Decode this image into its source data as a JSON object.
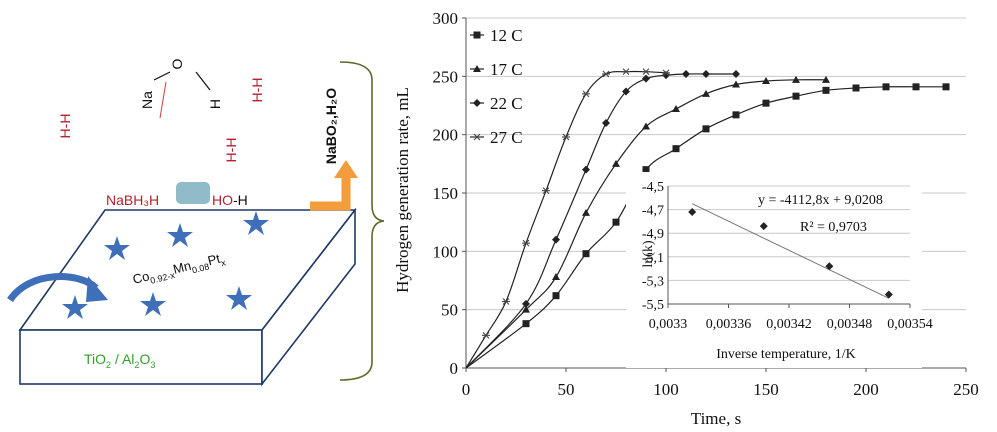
{
  "schematic": {
    "molecules": [
      "H-H",
      "H-H",
      "H-H"
    ],
    "na": "Na",
    "o": "O",
    "h": "H",
    "surface_left": "NaBH₃H",
    "surface_right_ho": "HO",
    "surface_right_h": "-H",
    "product": "NaBO₂,H₂O",
    "catalyst_main": "Co",
    "catalyst_sub1": "0.92-x",
    "catalyst_mn": "Mn",
    "catalyst_sub2": "0.08",
    "catalyst_pt": "Pt",
    "catalyst_sub3": "x",
    "support_ti": "TiO",
    "support_sub1": "2",
    "support_mid": " / Al",
    "support_sub2": "2",
    "support_o": "O",
    "support_sub3": "3",
    "colors": {
      "red": "#b5222d",
      "green": "#33a02c",
      "star": "#3f6fb8",
      "box_edge": "#1f3864",
      "orange": "#f39c3b",
      "chip": "#8fbcc8"
    }
  },
  "chart_data": [
    {
      "type": "line",
      "xlabel": "Time, s",
      "ylabel": "Hydrogen generation rate, mL",
      "xlim": [
        0,
        250
      ],
      "ylim": [
        0,
        300
      ],
      "xticks": [
        "0",
        "50",
        "100",
        "150",
        "200",
        "250"
      ],
      "yticks": [
        "0",
        "50",
        "100",
        "150",
        "200",
        "250",
        "300"
      ],
      "grid": "horizontal",
      "legend_position": "top-left",
      "series": [
        {
          "name": "12 C",
          "marker": "square",
          "x": [
            0,
            30,
            45,
            60,
            75,
            90,
            105,
            120,
            135,
            150,
            165,
            180,
            195,
            210,
            225,
            240
          ],
          "y": [
            0,
            38,
            62,
            98,
            125,
            170,
            188,
            205,
            217,
            227,
            233,
            238,
            240,
            241,
            241,
            241
          ]
        },
        {
          "name": "17 C",
          "marker": "triangle",
          "x": [
            0,
            30,
            45,
            60,
            75,
            90,
            105,
            120,
            135,
            150,
            165,
            180
          ],
          "y": [
            0,
            50,
            78,
            133,
            175,
            207,
            222,
            235,
            243,
            246,
            247,
            247
          ]
        },
        {
          "name": "22 C",
          "marker": "diamond",
          "x": [
            0,
            30,
            45,
            60,
            70,
            80,
            90,
            100,
            110,
            120,
            135
          ],
          "y": [
            0,
            55,
            110,
            170,
            210,
            237,
            248,
            251,
            252,
            252,
            252
          ]
        },
        {
          "name": "27 C",
          "marker": "star",
          "x": [
            0,
            10,
            20,
            30,
            40,
            50,
            60,
            70,
            80,
            90,
            100
          ],
          "y": [
            0,
            28,
            57,
            107,
            152,
            198,
            235,
            252,
            254,
            254,
            253
          ]
        }
      ]
    },
    {
      "type": "scatter",
      "xlabel": "Inverse temperature, 1/K",
      "ylabel": "ln(k)",
      "xlim": [
        0.0033,
        0.00354
      ],
      "ylim": [
        -5.5,
        -4.5
      ],
      "xticks": [
        "0,0033",
        "0,00336",
        "0,00342",
        "0,00348",
        "0,00354"
      ],
      "yticks": [
        "-4,5",
        "-4,7",
        "-4,9",
        "-5,1",
        "-5,3",
        "-5,5"
      ],
      "grid": "horizontal",
      "x": [
        0.003324,
        0.003395,
        0.00346,
        0.003519
      ],
      "y": [
        -4.72,
        -4.84,
        -5.18,
        -5.42
      ],
      "trendline": {
        "slope": -4112.8,
        "intercept": 9.0208
      },
      "equation": "y = -4112,8x + 9,0208",
      "r2": "R² = 0,9703"
    }
  ]
}
